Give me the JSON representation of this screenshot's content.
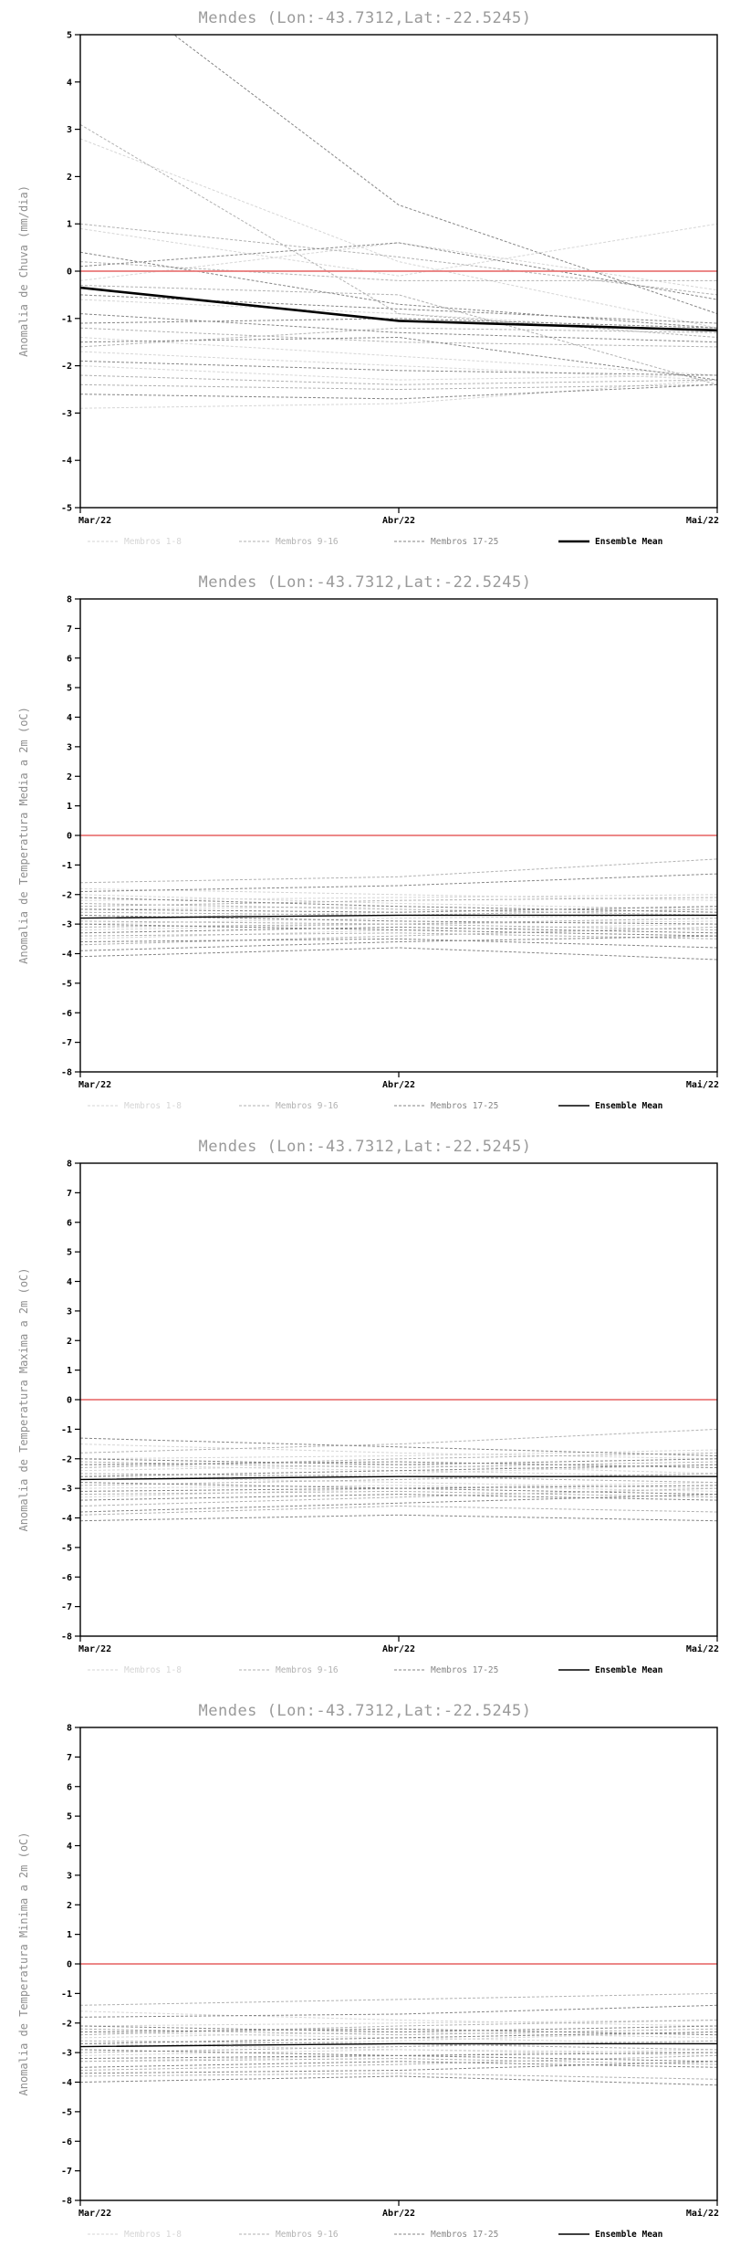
{
  "palette": {
    "members_1_8": "#d6d6d6",
    "members_9_16": "#b2b2b2",
    "members_17_25": "#868686",
    "ensemble_mean": "#000000",
    "zero_line": "#e97777",
    "title_color": "#9a9a9a",
    "axis_label_color": "#8f8f8f",
    "tick_color": "#000000"
  },
  "legend": [
    {
      "label": "Membros 1-8",
      "color": "#d6d6d6",
      "dash": true
    },
    {
      "label": "Membros 9-16",
      "color": "#b2b2b2",
      "dash": true
    },
    {
      "label": "Membros 17-25",
      "color": "#868686",
      "dash": true
    },
    {
      "label": "Ensemble Mean",
      "color": "#000000",
      "dash": false
    }
  ],
  "chart_data": [
    {
      "type": "line",
      "title": "Mendes (Lon:-43.7312,Lat:-22.5245)",
      "ylabel": "Anomalia de Chuva (mm/dia)",
      "ylim": [
        -5,
        5
      ],
      "ytick_step": 1,
      "x_labels": [
        "Mar/22",
        "Abr/22",
        "Mai/22"
      ],
      "grid": false,
      "legend_position": "bottom",
      "members": {
        "g1_8": [
          [
            2.8,
            0.2,
            -1.2
          ],
          [
            0.9,
            -0.1,
            1.0
          ],
          [
            -0.2,
            0.6,
            -0.4
          ],
          [
            -1.4,
            -1.8,
            -2.2
          ],
          [
            -1.7,
            -2.0,
            -2.3
          ],
          [
            -2.0,
            -2.3,
            -2.2
          ],
          [
            -2.9,
            -2.8,
            -2.3
          ],
          [
            -0.6,
            -0.9,
            -1.3
          ]
        ],
        "g9_16": [
          [
            3.1,
            -0.9,
            -1.4
          ],
          [
            1.0,
            0.3,
            -0.5
          ],
          [
            -0.3,
            -0.5,
            -2.4
          ],
          [
            -1.2,
            -1.5,
            -1.6
          ],
          [
            -1.6,
            -1.2,
            -1.3
          ],
          [
            -2.2,
            -2.4,
            -2.3
          ],
          [
            -2.4,
            -2.5,
            -2.4
          ],
          [
            0.2,
            -0.2,
            -0.2
          ]
        ],
        "g17_25": [
          [
            6.5,
            1.4,
            -0.9
          ],
          [
            0.1,
            0.6,
            -0.6
          ],
          [
            -0.5,
            -0.8,
            -1.1
          ],
          [
            -0.9,
            -1.3,
            -1.5
          ],
          [
            -1.1,
            -1.0,
            -1.2
          ],
          [
            -1.5,
            -1.4,
            -2.3
          ],
          [
            -2.6,
            -2.7,
            -2.4
          ],
          [
            -1.9,
            -2.1,
            -2.2
          ],
          [
            0.4,
            -0.7,
            -1.2
          ]
        ]
      },
      "ensemble_mean": [
        -0.35,
        -1.05,
        -1.25
      ]
    },
    {
      "type": "line",
      "title": "Mendes (Lon:-43.7312,Lat:-22.5245)",
      "ylabel": "Anomalia de Temperatura Media a 2m (oC)",
      "ylim": [
        -8,
        8
      ],
      "ytick_step": 1,
      "x_labels": [
        "Mar/22",
        "Abr/22",
        "Mai/22"
      ],
      "grid": false,
      "legend_position": "bottom",
      "members": {
        "g1_8": [
          [
            -1.8,
            -2.0,
            -2.2
          ],
          [
            -2.2,
            -2.1,
            -2.0
          ],
          [
            -2.5,
            -2.4,
            -2.6
          ],
          [
            -2.8,
            -2.6,
            -2.4
          ],
          [
            -3.0,
            -2.8,
            -2.7
          ],
          [
            -3.2,
            -3.0,
            -2.9
          ],
          [
            -3.5,
            -3.2,
            -3.0
          ],
          [
            -2.0,
            -2.3,
            -2.5
          ]
        ],
        "g9_16": [
          [
            -1.6,
            -1.4,
            -0.8
          ],
          [
            -2.3,
            -2.5,
            -2.7
          ],
          [
            -2.6,
            -2.7,
            -2.5
          ],
          [
            -2.9,
            -3.0,
            -3.2
          ],
          [
            -3.1,
            -3.0,
            -2.8
          ],
          [
            -3.4,
            -3.3,
            -3.5
          ],
          [
            -3.7,
            -3.4,
            -3.1
          ],
          [
            -2.4,
            -2.2,
            -2.1
          ]
        ],
        "g17_25": [
          [
            -1.9,
            -1.7,
            -1.3
          ],
          [
            -2.1,
            -2.4,
            -2.6
          ],
          [
            -2.7,
            -2.9,
            -3.0
          ],
          [
            -3.0,
            -3.2,
            -3.4
          ],
          [
            -3.3,
            -3.1,
            -3.3
          ],
          [
            -3.6,
            -3.5,
            -3.8
          ],
          [
            -3.9,
            -3.6,
            -3.4
          ],
          [
            -4.1,
            -3.8,
            -4.2
          ],
          [
            -2.5,
            -2.6,
            -2.4
          ]
        ]
      },
      "ensemble_mean": [
        -2.8,
        -2.7,
        -2.7
      ]
    },
    {
      "type": "line",
      "title": "Mendes (Lon:-43.7312,Lat:-22.5245)",
      "ylabel": "Anomalia de Temperatura Maxima a 2m (oC)",
      "ylim": [
        -8,
        8
      ],
      "ytick_step": 1,
      "x_labels": [
        "Mar/22",
        "Abr/22",
        "Mai/22"
      ],
      "grid": false,
      "legend_position": "bottom",
      "members": {
        "g1_8": [
          [
            -1.5,
            -1.8,
            -2.0
          ],
          [
            -2.0,
            -1.9,
            -1.7
          ],
          [
            -2.4,
            -2.2,
            -2.5
          ],
          [
            -2.7,
            -2.5,
            -2.2
          ],
          [
            -3.0,
            -2.9,
            -3.1
          ],
          [
            -3.3,
            -3.0,
            -2.8
          ],
          [
            -2.2,
            -2.4,
            -2.6
          ],
          [
            -2.6,
            -2.8,
            -3.0
          ]
        ],
        "g9_16": [
          [
            -1.8,
            -1.5,
            -1.0
          ],
          [
            -2.1,
            -2.3,
            -2.1
          ],
          [
            -2.5,
            -2.6,
            -2.8
          ],
          [
            -2.9,
            -2.7,
            -2.5
          ],
          [
            -3.2,
            -3.1,
            -3.3
          ],
          [
            -3.6,
            -3.3,
            -3.0
          ],
          [
            -3.9,
            -3.6,
            -3.8
          ],
          [
            -2.3,
            -2.0,
            -1.8
          ]
        ],
        "g17_25": [
          [
            -1.3,
            -1.6,
            -1.9
          ],
          [
            -2.0,
            -2.2,
            -2.0
          ],
          [
            -2.6,
            -2.4,
            -2.2
          ],
          [
            -3.1,
            -3.0,
            -2.9
          ],
          [
            -3.4,
            -3.2,
            -3.4
          ],
          [
            -3.8,
            -3.5,
            -3.2
          ],
          [
            -4.1,
            -3.9,
            -4.1
          ],
          [
            -2.8,
            -3.0,
            -3.2
          ],
          [
            -2.2,
            -2.1,
            -2.3
          ]
        ]
      },
      "ensemble_mean": [
        -2.7,
        -2.6,
        -2.6
      ]
    },
    {
      "type": "line",
      "title": "Mendes (Lon:-43.7312,Lat:-22.5245)",
      "ylabel": "Anomalia de Temperatura Minima a 2m (oC)",
      "ylim": [
        -8,
        8
      ],
      "ytick_step": 1,
      "x_labels": [
        "Mar/22",
        "Abr/22",
        "Mai/22"
      ],
      "grid": false,
      "legend_position": "bottom",
      "members": {
        "g1_8": [
          [
            -1.6,
            -1.9,
            -2.1
          ],
          [
            -2.1,
            -2.0,
            -1.9
          ],
          [
            -2.5,
            -2.3,
            -2.5
          ],
          [
            -2.8,
            -2.6,
            -2.3
          ],
          [
            -3.1,
            -2.9,
            -3.0
          ],
          [
            -3.3,
            -3.1,
            -2.9
          ],
          [
            -2.3,
            -2.5,
            -2.7
          ],
          [
            -2.7,
            -2.9,
            -3.1
          ]
        ],
        "g9_16": [
          [
            -1.4,
            -1.2,
            -1.0
          ],
          [
            -2.2,
            -2.4,
            -2.2
          ],
          [
            -2.6,
            -2.7,
            -2.9
          ],
          [
            -3.0,
            -2.8,
            -2.6
          ],
          [
            -3.3,
            -3.2,
            -3.4
          ],
          [
            -3.6,
            -3.4,
            -3.1
          ],
          [
            -3.8,
            -3.7,
            -3.9
          ],
          [
            -2.4,
            -2.1,
            -1.9
          ]
        ],
        "g17_25": [
          [
            -1.8,
            -1.7,
            -1.4
          ],
          [
            -2.1,
            -2.3,
            -2.1
          ],
          [
            -2.7,
            -2.5,
            -2.3
          ],
          [
            -3.2,
            -3.1,
            -3.0
          ],
          [
            -3.5,
            -3.3,
            -3.5
          ],
          [
            -3.7,
            -3.6,
            -3.3
          ],
          [
            -4.0,
            -3.8,
            -4.1
          ],
          [
            -2.9,
            -3.1,
            -3.3
          ],
          [
            -2.3,
            -2.2,
            -2.4
          ]
        ]
      },
      "ensemble_mean": [
        -2.8,
        -2.7,
        -2.7
      ]
    }
  ]
}
